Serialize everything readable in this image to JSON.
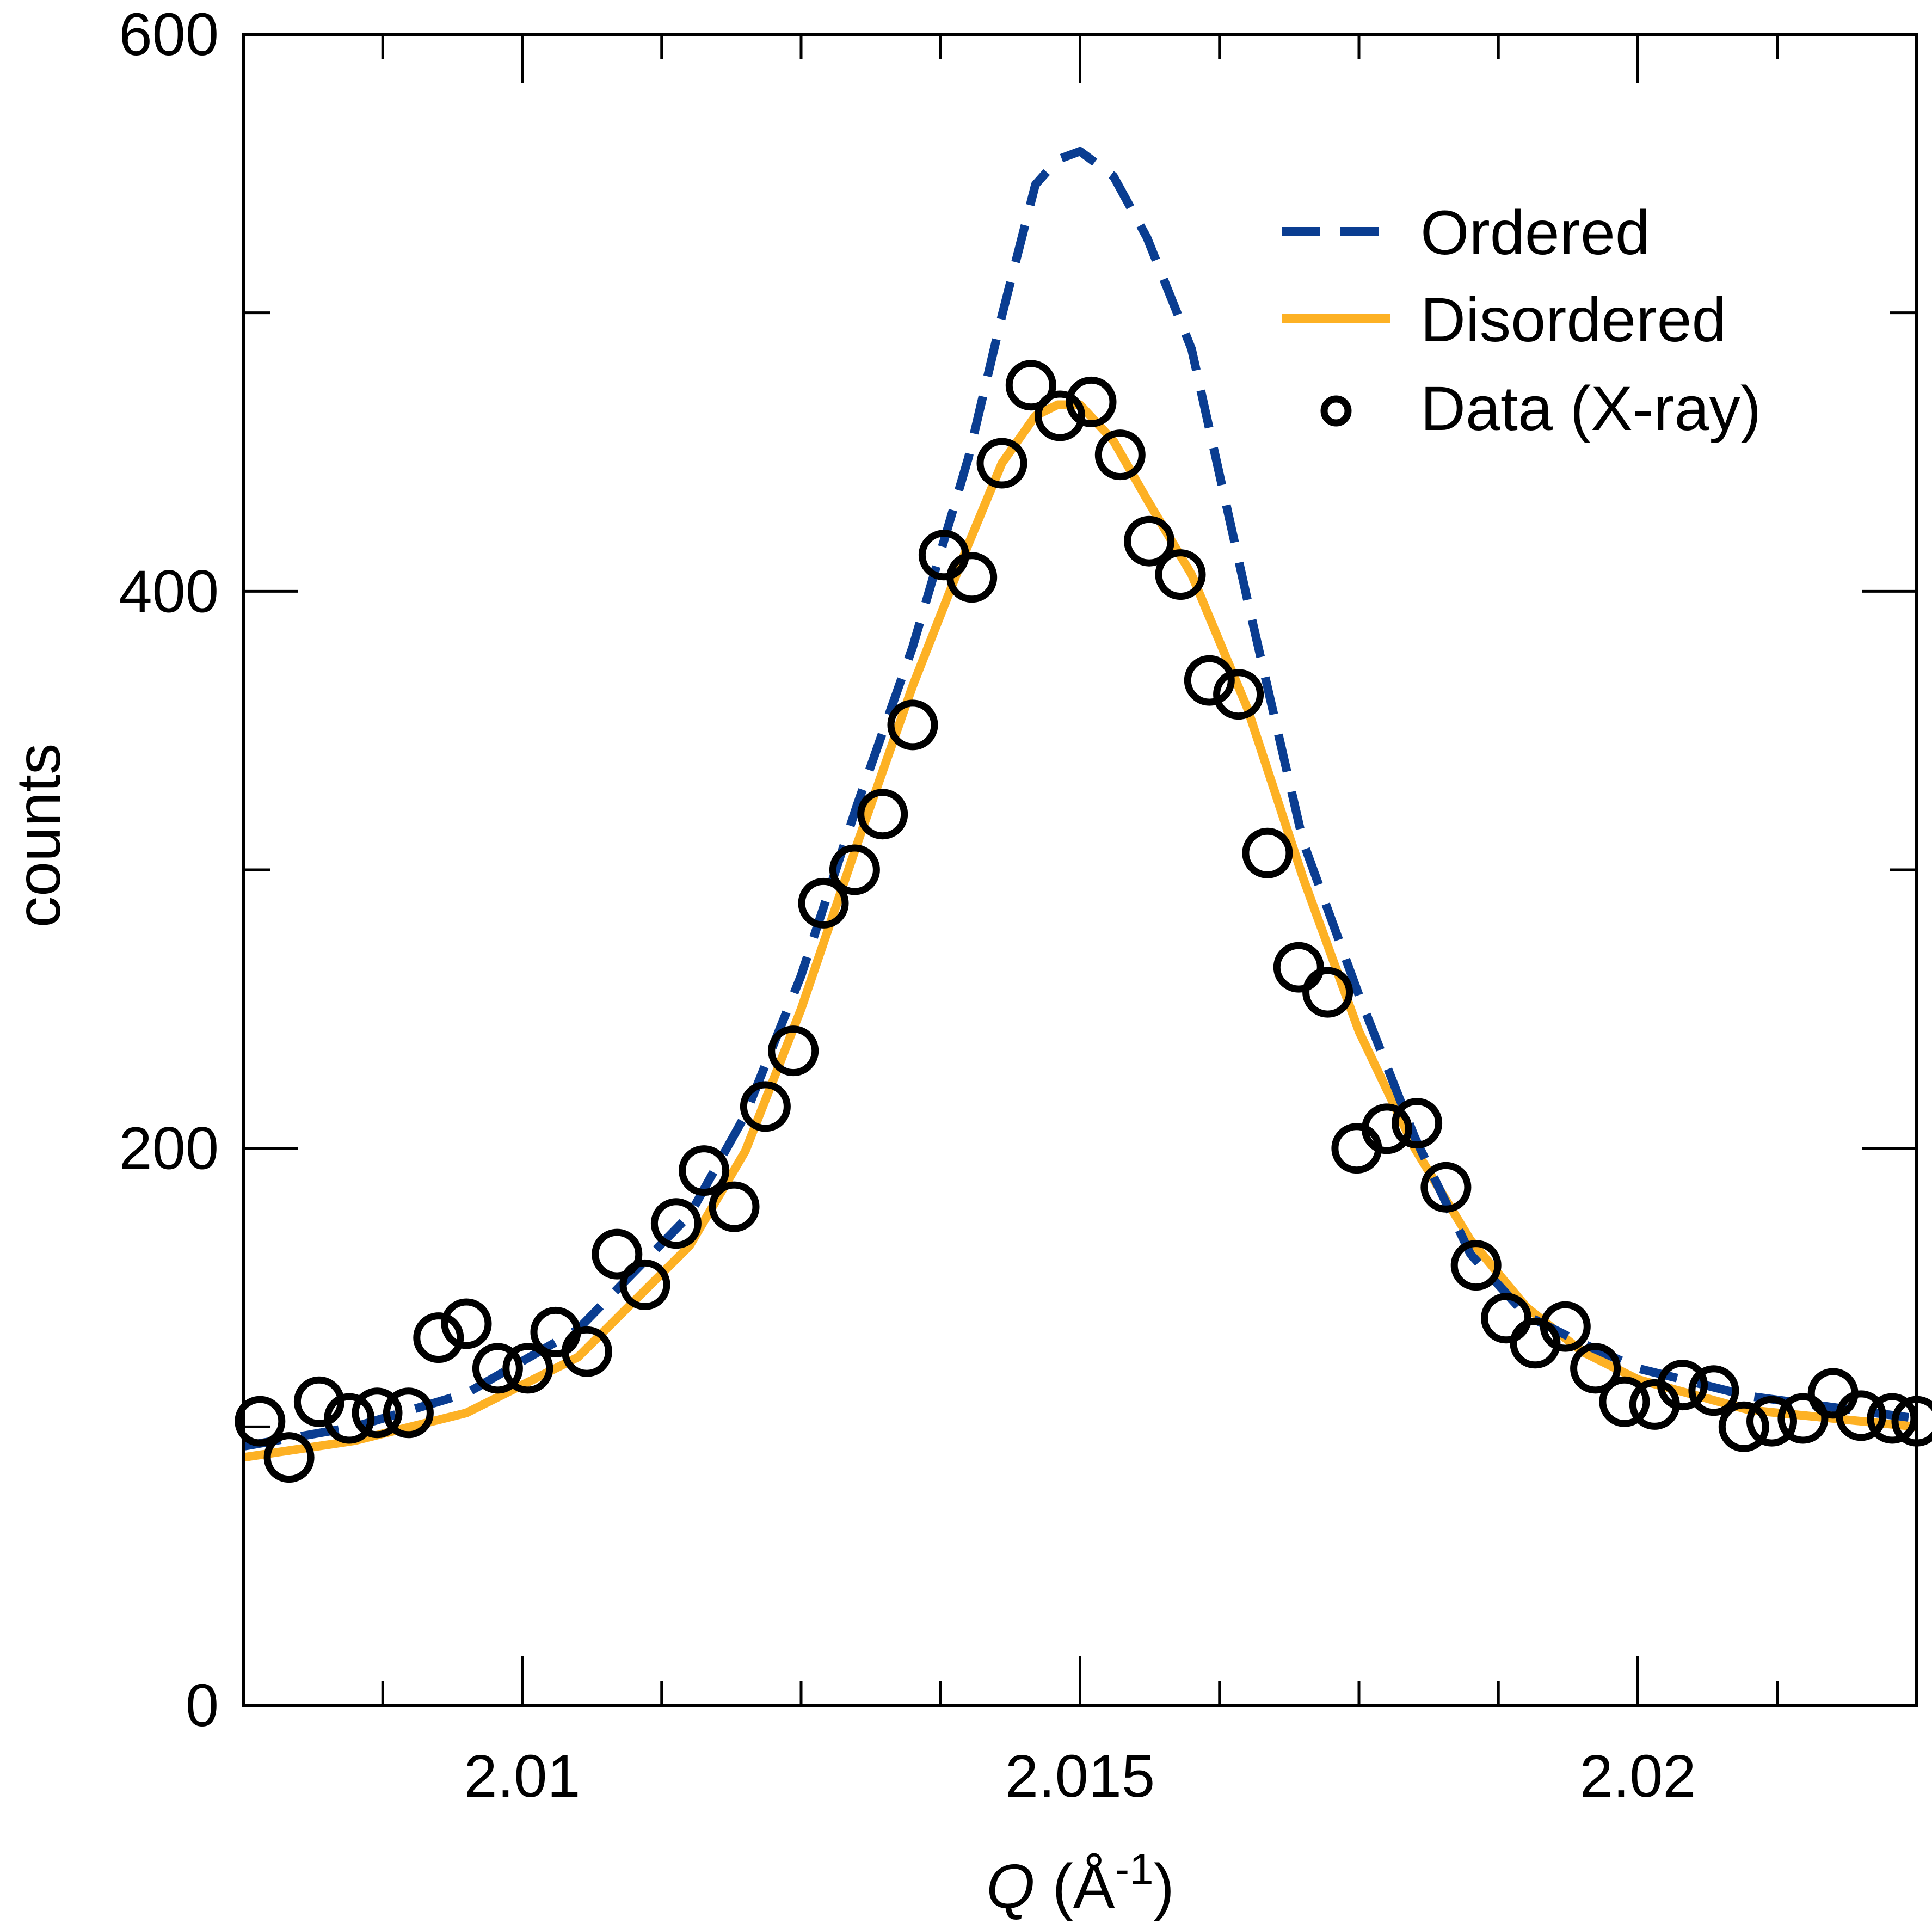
{
  "chart_data": {
    "type": "line",
    "title": "",
    "xlabel": {
      "symbol": "Q",
      "open": " (Å",
      "sup": "-1",
      "close": ")"
    },
    "ylabel": "counts",
    "xlim": [
      2.0075,
      2.0225
    ],
    "ylim": [
      0,
      600
    ],
    "x_major_ticks": [
      2.01,
      2.015,
      2.02
    ],
    "x_tick_labels": [
      "2.01",
      "2.015",
      "2.02"
    ],
    "x_minor_step": 0.00125,
    "y_major_ticks": [
      0,
      200,
      400,
      600
    ],
    "y_tick_labels": [
      "0",
      "200",
      "400",
      "600"
    ],
    "y_minor_step": 100,
    "grid": false,
    "legend_position": "top-right",
    "series": [
      {
        "name": "Ordered",
        "style": "dashed",
        "color": "#0a3d91",
        "x": [
          2.0075,
          2.0085,
          2.0095,
          2.0105,
          2.0115,
          2.012,
          2.0125,
          2.013,
          2.0135,
          2.014,
          2.0143,
          2.0146,
          2.0148,
          2.015,
          2.0153,
          2.0156,
          2.016,
          2.0165,
          2.017,
          2.0175,
          2.018,
          2.0185,
          2.019,
          2.0195,
          2.02,
          2.021,
          2.0225
        ],
        "y": [
          93,
          100,
          112,
          135,
          176,
          212,
          262,
          323,
          380,
          448,
          499,
          546,
          555,
          558,
          549,
          527,
          487,
          397,
          310,
          255,
          204,
          162,
          140,
          130,
          121,
          111,
          103
        ]
      },
      {
        "name": "Disordered",
        "style": "solid",
        "color": "#fdb124",
        "x": [
          2.0075,
          2.0085,
          2.0095,
          2.0105,
          2.0115,
          2.012,
          2.0125,
          2.013,
          2.0135,
          2.014,
          2.0143,
          2.0146,
          2.0148,
          2.015,
          2.0153,
          2.0156,
          2.016,
          2.0165,
          2.017,
          2.0175,
          2.018,
          2.0185,
          2.019,
          2.0195,
          2.02,
          2.021,
          2.0225
        ],
        "y": [
          89,
          95,
          105,
          125,
          165,
          199,
          250,
          309,
          366,
          417,
          446,
          463,
          467,
          467,
          454,
          433,
          406,
          358,
          297,
          242,
          200,
          167,
          143,
          127,
          117,
          106,
          100
        ]
      }
    ],
    "scatter": {
      "name": "Data (X-ray)",
      "marker": "open-circle",
      "color": "#000000",
      "x": [
        2.00765,
        2.00791,
        2.00818,
        2.00845,
        2.0087,
        2.00898,
        2.00925,
        2.0095,
        2.00978,
        2.01005,
        2.0103,
        2.01058,
        2.01085,
        2.0111,
        2.01138,
        2.01163,
        2.0119,
        2.01218,
        2.01243,
        2.0127,
        2.01298,
        2.01323,
        2.0135,
        2.01378,
        2.01403,
        2.0143,
        2.01456,
        2.01482,
        2.0151,
        2.01536,
        2.01562,
        2.0159,
        2.01616,
        2.01642,
        2.01668,
        2.01696,
        2.01722,
        2.01748,
        2.01775,
        2.01802,
        2.01828,
        2.01855,
        2.01882,
        2.01908,
        2.01935,
        2.01962,
        2.01988,
        2.02015,
        2.0204,
        2.02068,
        2.02095,
        2.0212,
        2.02148,
        2.02175,
        2.022,
        2.02228,
        2.0225
      ],
      "y": [
        102,
        89,
        109,
        103,
        105,
        105,
        132,
        137,
        121,
        121,
        134,
        127,
        162,
        151,
        173,
        192,
        179,
        215,
        235,
        288,
        300,
        320,
        352,
        413,
        405,
        446,
        474,
        463,
        468,
        449,
        418,
        406,
        368,
        363,
        306,
        265,
        256,
        200,
        207,
        209,
        186,
        158,
        139,
        130,
        136,
        121,
        109,
        108,
        115,
        113,
        100,
        102,
        103,
        112,
        104,
        103,
        102
      ]
    }
  }
}
